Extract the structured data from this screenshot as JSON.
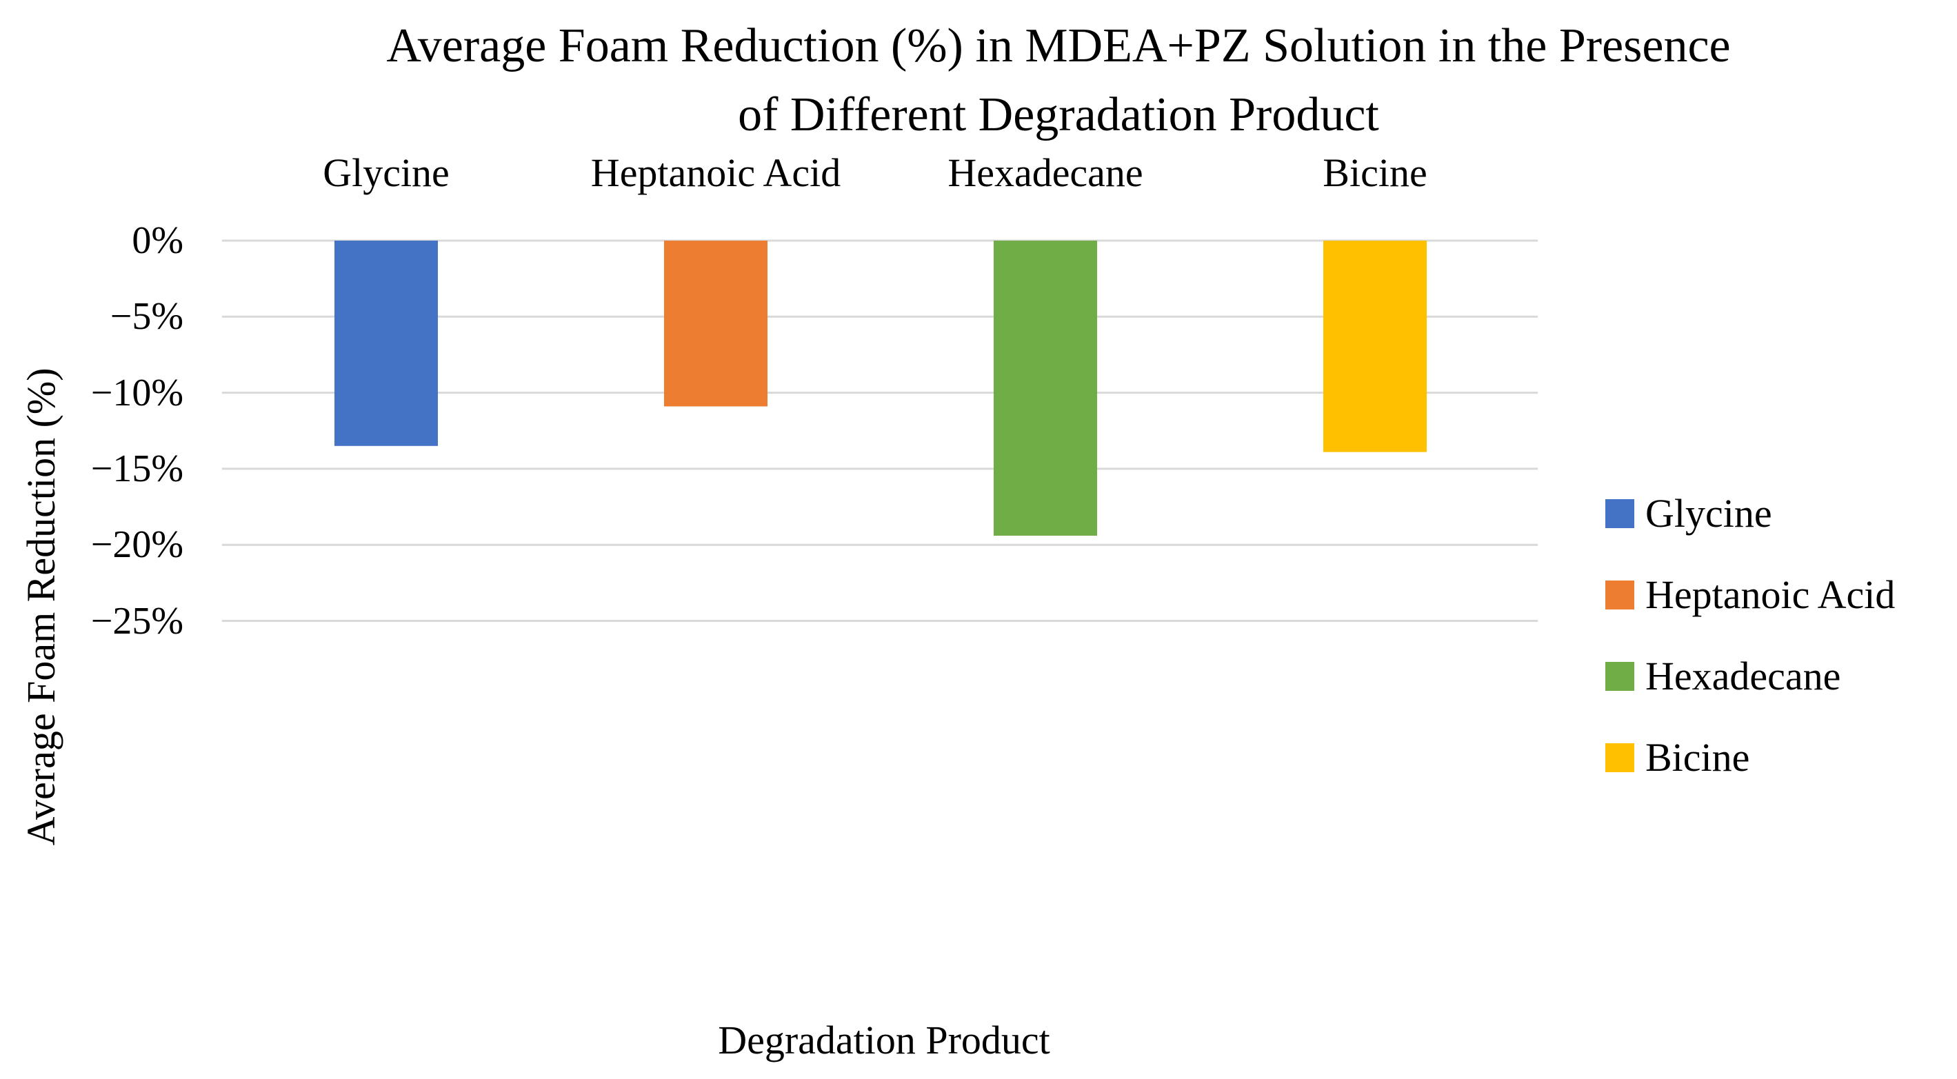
{
  "chart_data": {
    "type": "bar",
    "title_lines": [
      "Average Foam Reduction (%) in MDEA+PZ Solution in the Presence",
      "of Different Degradation Product"
    ],
    "xlabel": "Degradation Product",
    "ylabel": "Average Foam Reduction (%)",
    "ylim": [
      -25,
      0
    ],
    "y_ticks": [
      0,
      -5,
      -10,
      -15,
      -20,
      -25
    ],
    "y_tick_labels": [
      "0%",
      "−5%",
      "−10%",
      "−15%",
      "−20%",
      "−25%"
    ],
    "grid": true,
    "legend_position": "right",
    "series": [
      {
        "name": "Glycine",
        "value": -13.5,
        "color": "#4472C4"
      },
      {
        "name": "Heptanoic Acid",
        "value": -10.9,
        "color": "#ED7D31"
      },
      {
        "name": "Hexadecane",
        "value": -19.4,
        "color": "#70AD47"
      },
      {
        "name": "Bicine",
        "value": -13.9,
        "color": "#FFC000"
      }
    ],
    "gridline_color": "#D9D9D9"
  }
}
